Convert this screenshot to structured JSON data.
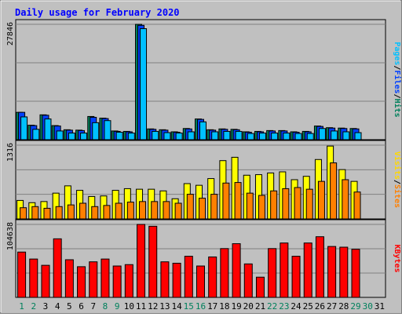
{
  "chart_data": {
    "type": "bar",
    "title": "Daily usage for February 2020",
    "categories": [
      "1",
      "2",
      "3",
      "4",
      "5",
      "6",
      "7",
      "8",
      "9",
      "10",
      "11",
      "12",
      "13",
      "14",
      "15",
      "16",
      "17",
      "18",
      "19",
      "20",
      "21",
      "22",
      "23",
      "24",
      "25",
      "26",
      "27",
      "28",
      "29",
      "30",
      "31"
    ],
    "weekend_days": [
      "1",
      "2",
      "8",
      "9",
      "15",
      "16",
      "22",
      "23",
      "29",
      "30"
    ],
    "panels": [
      {
        "id": "hits_files_pages",
        "max_label": "27846",
        "ymax": 27846,
        "right_labels": [
          {
            "text": "Pages",
            "color": "#00c0ff"
          },
          {
            "text": "/",
            "color": "#000000"
          },
          {
            "text": "Files",
            "color": "#0040ff"
          },
          {
            "text": "/",
            "color": "#000000"
          },
          {
            "text": "Hits",
            "color": "#00805c"
          }
        ],
        "series": [
          {
            "name": "Hits",
            "color": "#00805c",
            "values": [
              6600,
              3500,
              6000,
              3400,
              2400,
              2300,
              5600,
              5200,
              2100,
              2000,
              27846,
              2600,
              2400,
              1900,
              2700,
              5000,
              2400,
              2600,
              2500,
              1900,
              2000,
              2200,
              2200,
              1900,
              2000,
              3300,
              2900,
              2800,
              2700,
              null,
              null
            ]
          },
          {
            "name": "Files",
            "color": "#0040ff",
            "values": [
              6600,
              3400,
              5900,
              3300,
              2300,
              2200,
              5400,
              5100,
              2000,
              1900,
              27600,
              2500,
              2300,
              1800,
              2600,
              4900,
              2300,
              2500,
              2400,
              1800,
              1900,
              2100,
              2100,
              1800,
              1900,
              3200,
              2800,
              2700,
              2600,
              null,
              null
            ]
          },
          {
            "name": "Pages",
            "color": "#00c0ff",
            "values": [
              5500,
              2500,
              5000,
              2100,
              1600,
              1600,
              4100,
              4600,
              1800,
              1600,
              26800,
              2000,
              1700,
              1600,
              1900,
              4300,
              1900,
              2000,
              2000,
              1500,
              1600,
              1600,
              1600,
              1500,
              1500,
              2700,
              2100,
              1900,
              1700,
              null,
              null
            ]
          }
        ]
      },
      {
        "id": "visits_sites",
        "max_label": "1316",
        "ymax": 1316,
        "right_labels": [
          {
            "text": "Visits",
            "color": "#ffd800"
          },
          {
            "text": "/",
            "color": "#000000"
          },
          {
            "text": "Sites",
            "color": "#ff8000"
          }
        ],
        "series": [
          {
            "name": "Visits",
            "color": "#ffff00",
            "values": [
              330,
              290,
              310,
              460,
              590,
              510,
              400,
              410,
              510,
              540,
              530,
              530,
              500,
              360,
              630,
              600,
              720,
              1040,
              1100,
              780,
              790,
              820,
              840,
              700,
              760,
              1060,
              1300,
              880,
              670,
              null,
              null
            ]
          },
          {
            "name": "Sites",
            "color": "#ff8000",
            "values": [
              200,
              220,
              190,
              220,
              250,
              280,
              220,
              240,
              280,
              300,
              310,
              310,
              310,
              280,
              440,
              370,
              440,
              640,
              650,
              460,
              420,
              500,
              540,
              560,
              530,
              670,
              1000,
              700,
              480,
              null,
              null
            ]
          }
        ]
      },
      {
        "id": "kbytes",
        "max_label": "104638",
        "ymax": 104638,
        "right_labels": [
          {
            "text": "KBytes",
            "color": "#ff0000"
          }
        ],
        "series": [
          {
            "name": "KBytes",
            "color": "#ff0000",
            "values": [
              65000,
              55000,
              46000,
              84000,
              54000,
              44000,
              51000,
              55000,
              45000,
              47000,
              104638,
              102000,
              51000,
              49000,
              59000,
              45000,
              58000,
              70000,
              77000,
              48000,
              29000,
              70000,
              78000,
              59000,
              78000,
              87000,
              73000,
              72000,
              69000,
              null,
              null
            ]
          }
        ]
      }
    ]
  }
}
